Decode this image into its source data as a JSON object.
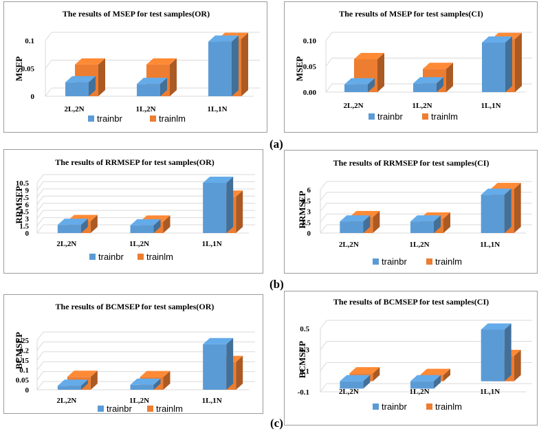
{
  "sublabels": {
    "a": "(a)",
    "b": "(b)",
    "c": "(c)"
  },
  "colors": {
    "trainbr": "#5b9bd5",
    "trainlm": "#ed7d31"
  },
  "chart_data": [
    {
      "type": "bar",
      "title": "The results of MSEP for test samples(OR)",
      "ylabel": "MSEP",
      "categories": [
        "2L,2N",
        "1L,2N",
        "1L,1N"
      ],
      "ylim": [
        0,
        0.1
      ],
      "yticks": [
        "0",
        "0.05",
        "0.1"
      ],
      "series": [
        {
          "name": "trainbr",
          "values": [
            0.025,
            0.022,
            0.098
          ]
        },
        {
          "name": "trainlm",
          "values": [
            0.057,
            0.057,
            0.103
          ]
        }
      ]
    },
    {
      "type": "bar",
      "title": "The results of MSEP for test samples(CI)",
      "ylabel": "MSEP",
      "categories": [
        "2L,2N",
        "1L,2N",
        "1L,1N"
      ],
      "ylim": [
        0,
        0.1
      ],
      "yticks": [
        "0.00",
        "0.05",
        "0.10"
      ],
      "series": [
        {
          "name": "trainbr",
          "values": [
            0.015,
            0.017,
            0.096
          ]
        },
        {
          "name": "trainlm",
          "values": [
            0.064,
            0.045,
            0.103
          ]
        }
      ]
    },
    {
      "type": "bar",
      "title": "The results of RRMSEP for test samples(OR)",
      "ylabel": "RRMSEP",
      "categories": [
        "2L,2N",
        "1L,2N",
        "1L,1N"
      ],
      "ylim": [
        0,
        10.5
      ],
      "yticks": [
        "0",
        "1.5",
        "3",
        "4.5",
        "6",
        "7.5",
        "9",
        "10.5"
      ],
      "series": [
        {
          "name": "trainbr",
          "values": [
            1.7,
            1.6,
            10.5
          ]
        },
        {
          "name": "trainlm",
          "values": [
            2.5,
            2.4,
            7.6
          ]
        }
      ]
    },
    {
      "type": "bar",
      "title": "The results of RRMSEP for test samples(CI)",
      "ylabel": "RRMSEP",
      "categories": [
        "2L,2N",
        "1L,2N",
        "1L,1N"
      ],
      "ylim": [
        0,
        6
      ],
      "yticks": [
        "0",
        "1.5",
        "3",
        "4.5",
        "6"
      ],
      "series": [
        {
          "name": "trainbr",
          "values": [
            1.6,
            1.6,
            5.3
          ]
        },
        {
          "name": "trainlm",
          "values": [
            2.2,
            2.0,
            6.1
          ]
        }
      ]
    },
    {
      "type": "bar",
      "title": "The results of BCMSEP for test samples(OR)",
      "ylabel": "BCMSEP",
      "categories": [
        "2L,2N",
        "1L,2N",
        "1L,1N"
      ],
      "ylim": [
        0,
        0.25
      ],
      "yticks": [
        "0",
        "0.05",
        "0.1",
        "0.15",
        "0.2",
        "0.25"
      ],
      "series": [
        {
          "name": "trainbr",
          "values": [
            0.02,
            0.025,
            0.23
          ]
        },
        {
          "name": "trainlm",
          "values": [
            0.065,
            0.064,
            0.14
          ]
        }
      ]
    },
    {
      "type": "bar",
      "title": "The results of BCMSEP for test samples(CI)",
      "ylabel": "BCMSEP",
      "categories": [
        "2L,2N",
        "1L,2N",
        "1L,1N"
      ],
      "ylim": [
        -0.1,
        0.5
      ],
      "yticks": [
        "-0.1",
        "0.1",
        "0.3",
        "0.5"
      ],
      "series": [
        {
          "name": "trainbr",
          "values": [
            -0.07,
            -0.07,
            0.49
          ]
        },
        {
          "name": "trainlm",
          "values": [
            0.075,
            0.06,
            0.24
          ]
        }
      ]
    }
  ]
}
